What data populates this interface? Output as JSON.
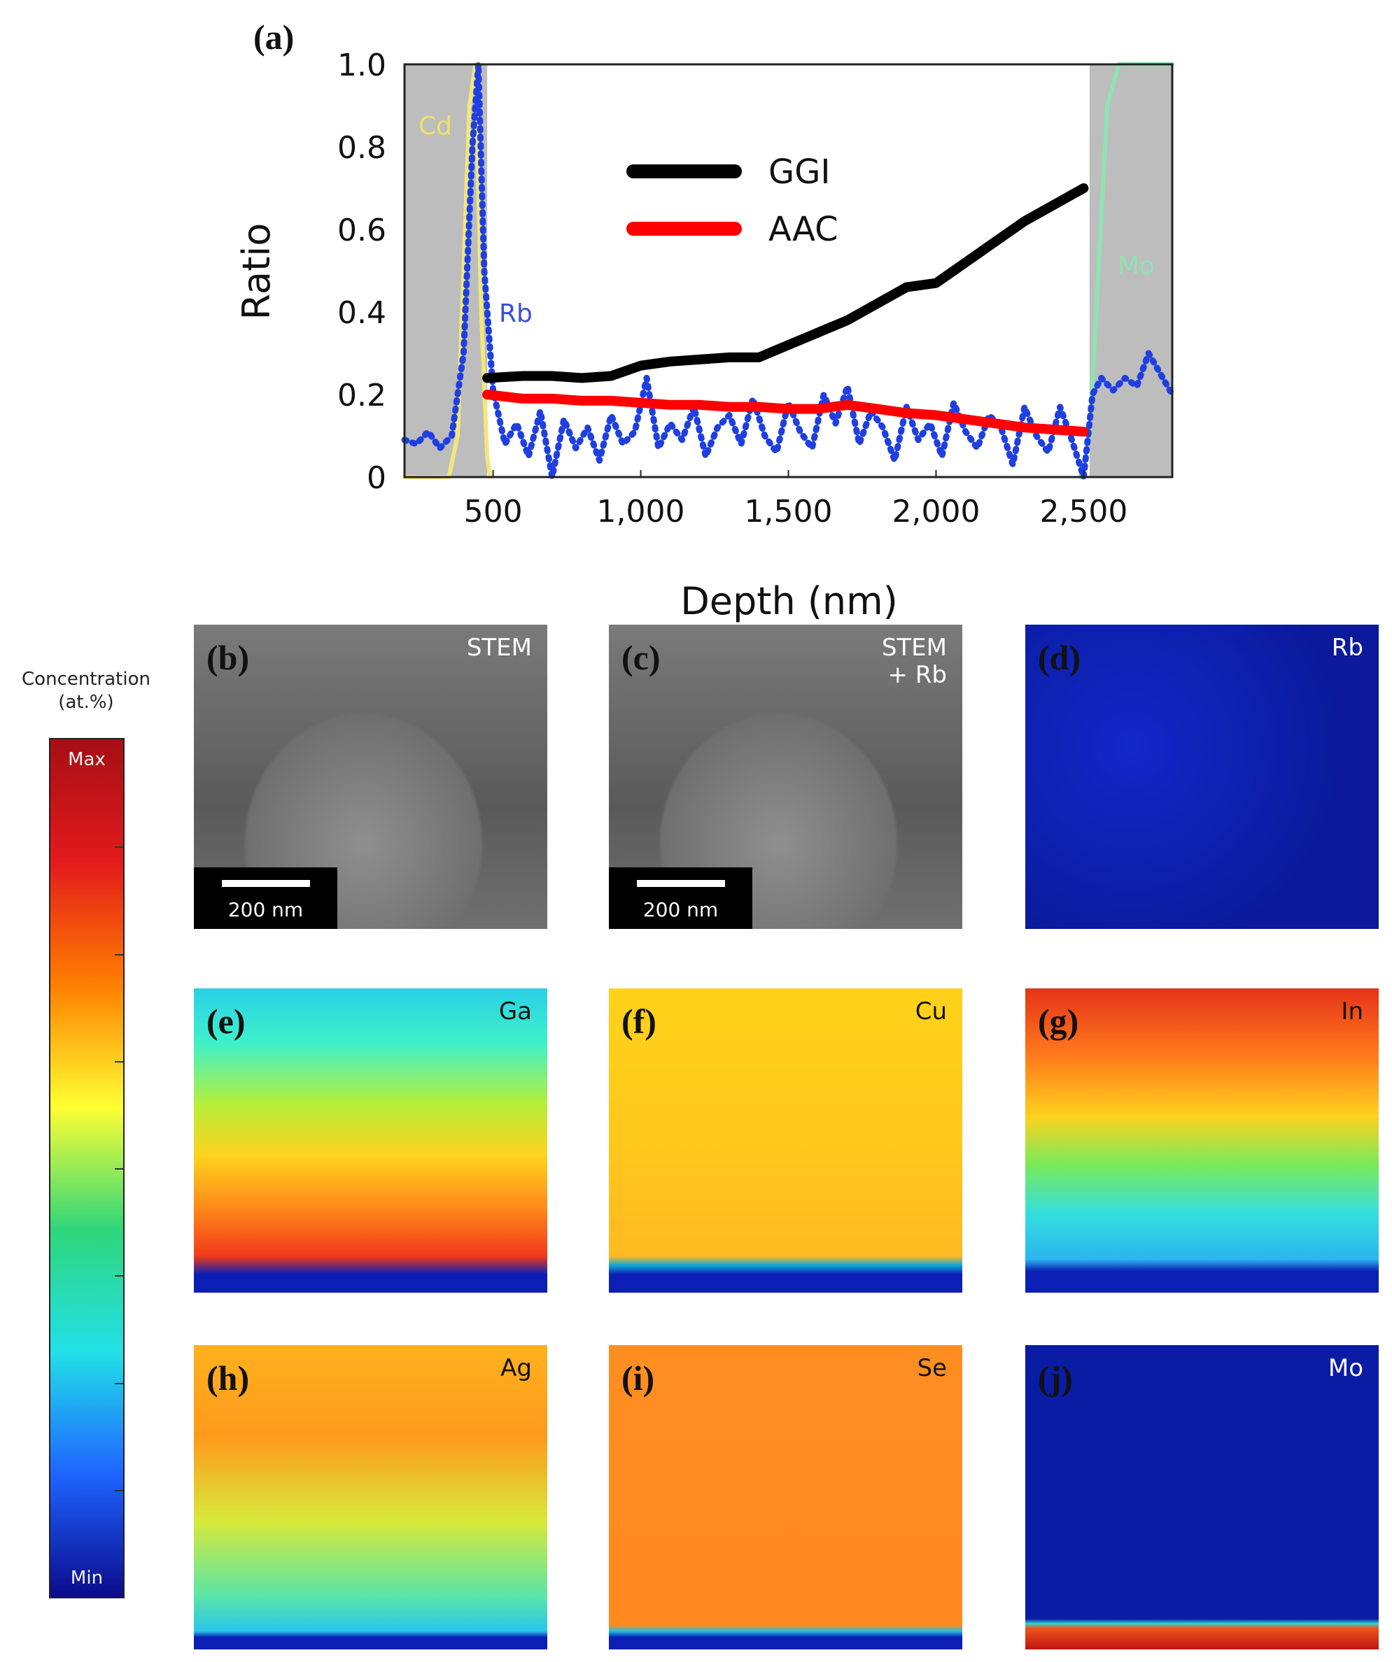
{
  "chart_data": {
    "type": "line",
    "panel_label": "(a)",
    "xlabel": "Depth (nm)",
    "ylabel": "Ratio",
    "xlim": [
      200,
      2800
    ],
    "ylim": [
      0,
      1.0
    ],
    "xticks": [
      500,
      1000,
      1500,
      2000,
      2500
    ],
    "xtick_labels": [
      "500",
      "1,000",
      "1,500",
      "2,000",
      "2,500"
    ],
    "yticks": [
      0,
      0.2,
      0.4,
      0.6,
      0.8,
      1.0
    ],
    "ytick_labels": [
      "0",
      "0.2",
      "0.4",
      "0.6",
      "0.8",
      "1.0"
    ],
    "shaded_regions": [
      {
        "label": "Cd",
        "x_range": [
          200,
          480
        ],
        "label_color": "#efe36a"
      },
      {
        "label": "Mo",
        "x_range": [
          2520,
          2800
        ],
        "label_color": "#8fe3b3"
      }
    ],
    "legend": {
      "position": "top-center",
      "entries": [
        {
          "name": "GGI",
          "color": "#000000"
        },
        {
          "name": "AAC",
          "color": "#ff0000"
        }
      ]
    },
    "series": [
      {
        "name": "GGI",
        "color": "#000000",
        "style": "solid-thick",
        "x": [
          480,
          600,
          700,
          800,
          900,
          1000,
          1100,
          1200,
          1300,
          1400,
          1500,
          1600,
          1700,
          1800,
          1900,
          2000,
          2100,
          2200,
          2300,
          2400,
          2500
        ],
        "y": [
          0.24,
          0.245,
          0.245,
          0.24,
          0.245,
          0.27,
          0.28,
          0.285,
          0.29,
          0.29,
          0.32,
          0.35,
          0.38,
          0.42,
          0.46,
          0.47,
          0.52,
          0.57,
          0.62,
          0.66,
          0.7
        ]
      },
      {
        "name": "AAC",
        "color": "#ff0000",
        "style": "solid-thick",
        "x": [
          480,
          600,
          700,
          800,
          900,
          1000,
          1100,
          1200,
          1300,
          1400,
          1500,
          1600,
          1700,
          1800,
          1900,
          2000,
          2100,
          2200,
          2300,
          2400,
          2500
        ],
        "y": [
          0.2,
          0.19,
          0.19,
          0.185,
          0.185,
          0.18,
          0.175,
          0.175,
          0.17,
          0.17,
          0.165,
          0.165,
          0.175,
          0.165,
          0.155,
          0.15,
          0.14,
          0.13,
          0.12,
          0.115,
          0.11
        ]
      },
      {
        "name": "Rb",
        "color": "#1f3fe0",
        "style": "dotted",
        "label_color": "#3a4fd6",
        "x": [
          200,
          240,
          280,
          320,
          360,
          400,
          430,
          450,
          470,
          500,
          540,
          580,
          620,
          660,
          700,
          740,
          780,
          820,
          860,
          900,
          940,
          980,
          1020,
          1060,
          1100,
          1140,
          1180,
          1220,
          1260,
          1300,
          1340,
          1380,
          1420,
          1460,
          1500,
          1540,
          1580,
          1620,
          1660,
          1700,
          1740,
          1780,
          1820,
          1860,
          1900,
          1940,
          1980,
          2020,
          2060,
          2100,
          2140,
          2180,
          2220,
          2260,
          2300,
          2340,
          2380,
          2420,
          2460,
          2500,
          2530,
          2560,
          2600,
          2640,
          2680,
          2720,
          2760,
          2800
        ],
        "y": [
          0.09,
          0.08,
          0.11,
          0.07,
          0.1,
          0.3,
          0.8,
          1.0,
          0.5,
          0.21,
          0.08,
          0.13,
          0.05,
          0.16,
          0.0,
          0.14,
          0.07,
          0.12,
          0.04,
          0.15,
          0.08,
          0.11,
          0.24,
          0.07,
          0.13,
          0.09,
          0.17,
          0.05,
          0.12,
          0.15,
          0.08,
          0.19,
          0.1,
          0.06,
          0.18,
          0.11,
          0.07,
          0.2,
          0.13,
          0.22,
          0.08,
          0.16,
          0.12,
          0.04,
          0.17,
          0.09,
          0.13,
          0.05,
          0.18,
          0.11,
          0.07,
          0.15,
          0.12,
          0.03,
          0.17,
          0.1,
          0.06,
          0.17,
          0.09,
          0.0,
          0.2,
          0.24,
          0.21,
          0.24,
          0.22,
          0.3,
          0.25,
          0.2
        ]
      },
      {
        "name": "Cd",
        "color": "#f2e87a",
        "style": "solid",
        "x": [
          200,
          350,
          380,
          400,
          420,
          440,
          460,
          480,
          490
        ],
        "y": [
          0.0,
          0.0,
          0.1,
          0.5,
          0.9,
          1.0,
          0.4,
          0.05,
          0.0
        ]
      },
      {
        "name": "Mo",
        "color": "#8fe3b3",
        "style": "solid",
        "x": [
          2490,
          2520,
          2550,
          2580,
          2620,
          2700,
          2800
        ],
        "y": [
          0.0,
          0.1,
          0.5,
          0.9,
          1.0,
          1.0,
          1.0
        ]
      }
    ]
  },
  "maps": [
    {
      "panel": "(b)",
      "element": "STEM",
      "color_theme": "stem",
      "scalebar": "200 nm",
      "label_color": "#ffffff"
    },
    {
      "panel": "(c)",
      "element": "STEM\n+ Rb",
      "color_theme": "stem-rb",
      "scalebar": "200 nm",
      "label_color": "#ffffff"
    },
    {
      "panel": "(d)",
      "element": "Rb",
      "color_theme": "rb",
      "label_color": "#ffffff"
    },
    {
      "panel": "(e)",
      "element": "Ga",
      "color_theme": "ga",
      "label_color": "#111111"
    },
    {
      "panel": "(f)",
      "element": "Cu",
      "color_theme": "cu",
      "label_color": "#111111"
    },
    {
      "panel": "(g)",
      "element": "In",
      "color_theme": "in",
      "label_color": "#111111"
    },
    {
      "panel": "(h)",
      "element": "Ag",
      "color_theme": "ag",
      "label_color": "#111111"
    },
    {
      "panel": "(i)",
      "element": "Se",
      "color_theme": "se",
      "label_color": "#111111"
    },
    {
      "panel": "(j)",
      "element": "Mo",
      "color_theme": "mo",
      "label_color": "#ffffff"
    }
  ],
  "colorbar": {
    "title_line1": "Concentration",
    "title_line2": "(at.%)",
    "max_label": "Max",
    "min_label": "Min",
    "colors": [
      "#a50f15",
      "#e31a1c",
      "#ff7f00",
      "#ffff33",
      "#2fd67a",
      "#22e0e8",
      "#1e64ff",
      "#0b0b8c"
    ]
  }
}
